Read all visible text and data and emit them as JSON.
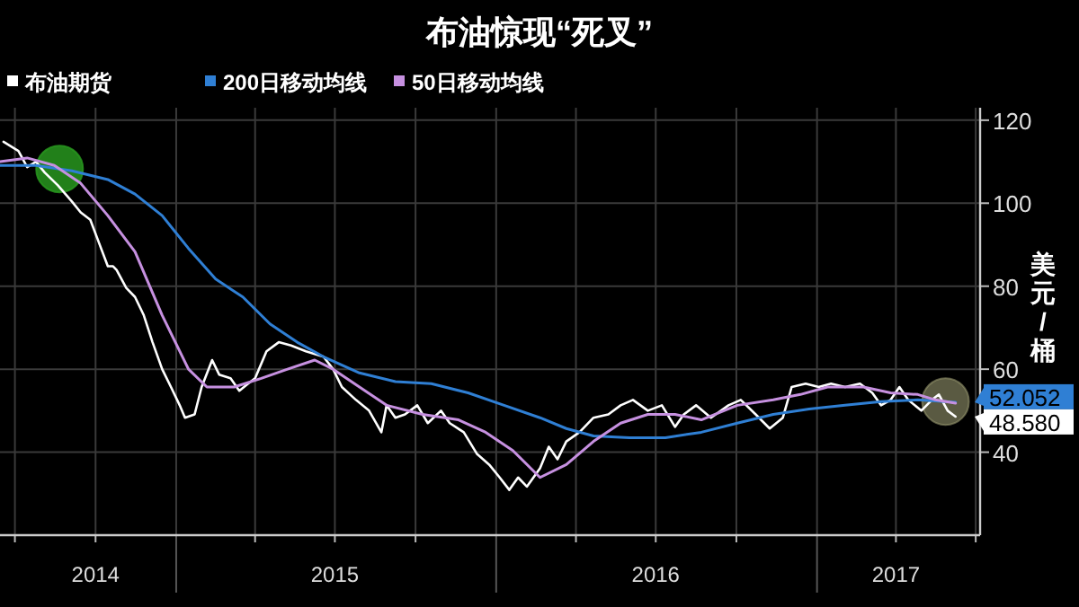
{
  "chart_data": {
    "type": "line",
    "title": "布油惊现“死叉”",
    "ylabel": "美元/桶",
    "legend": "top left",
    "grid": true,
    "xlim": [
      "2014-06-14",
      "2017-07-06"
    ],
    "ylim": [
      20,
      123
    ],
    "yticks": [
      40,
      60,
      80,
      100,
      120
    ],
    "xticks": [
      {
        "value": "2014-07-01",
        "label": null
      },
      {
        "value": "2014-10-01",
        "label": "2014"
      },
      {
        "value": "2015-01-01",
        "label": null
      },
      {
        "value": "2015-04-01",
        "label": null
      },
      {
        "value": "2015-07-01",
        "label": "2015"
      },
      {
        "value": "2015-10-01",
        "label": null
      },
      {
        "value": "2016-01-01",
        "label": null
      },
      {
        "value": "2016-04-01",
        "label": null
      },
      {
        "value": "2016-07-01",
        "label": "2016"
      },
      {
        "value": "2016-10-01",
        "label": null
      },
      {
        "value": "2017-01-01",
        "label": null
      },
      {
        "value": "2017-04-01",
        "label": "2017"
      },
      {
        "value": "2017-07-01",
        "label": null
      }
    ],
    "series": [
      {
        "name": "布油期货",
        "color": "#ffffff",
        "x": [
          "2014-06-18",
          "2014-07-05",
          "2014-07-15",
          "2014-07-25",
          "2014-08-04",
          "2014-08-19",
          "2014-09-04",
          "2014-09-14",
          "2014-09-25",
          "2014-10-05",
          "2014-10-15",
          "2014-10-21",
          "2014-10-25",
          "2014-11-05",
          "2014-11-15",
          "2014-11-25",
          "2014-12-05",
          "2014-12-16",
          "2014-12-26",
          "2015-01-05",
          "2015-01-11",
          "2015-01-22",
          "2015-01-30",
          "2015-02-11",
          "2015-02-19",
          "2015-03-04",
          "2015-03-14",
          "2015-03-24",
          "2015-04-01",
          "2015-04-14",
          "2015-04-28",
          "2015-05-12",
          "2015-05-29",
          "2015-06-18",
          "2015-06-29",
          "2015-07-09",
          "2015-07-25",
          "2015-08-09",
          "2015-08-23",
          "2015-08-29",
          "2015-09-08",
          "2015-09-19",
          "2015-10-03",
          "2015-10-15",
          "2015-10-30",
          "2015-11-09",
          "2015-11-25",
          "2015-12-10",
          "2015-12-24",
          "2016-01-05",
          "2016-01-16",
          "2016-01-26",
          "2016-02-05",
          "2016-02-20",
          "2016-03-01",
          "2016-03-11",
          "2016-03-21",
          "2016-04-05",
          "2016-04-21",
          "2016-05-08",
          "2016-05-22",
          "2016-06-05",
          "2016-06-22",
          "2016-07-08",
          "2016-07-23",
          "2016-08-02",
          "2016-08-16",
          "2016-09-02",
          "2016-09-22",
          "2016-10-06",
          "2016-10-23",
          "2016-11-08",
          "2016-11-23",
          "2016-12-03",
          "2016-12-19",
          "2017-01-03",
          "2017-01-17",
          "2017-02-02",
          "2017-02-19",
          "2017-03-05",
          "2017-03-15",
          "2017-03-26",
          "2017-04-05",
          "2017-04-15",
          "2017-04-30",
          "2017-05-12",
          "2017-05-20",
          "2017-05-30",
          "2017-06-08"
        ],
        "values": [
          114.8,
          112.6,
          108.7,
          110,
          107.4,
          104.3,
          100.4,
          97.8,
          96,
          90.4,
          84.8,
          84.8,
          83.9,
          79.6,
          77.4,
          73,
          66.5,
          60,
          55.7,
          51.3,
          48.3,
          49.1,
          55.7,
          62.2,
          58.7,
          57.8,
          54.8,
          56.5,
          57.8,
          64.3,
          66.5,
          65.7,
          64.3,
          63,
          60,
          55.7,
          52.6,
          50,
          44.8,
          51.3,
          48.3,
          49.1,
          51.3,
          47,
          50,
          47,
          44.8,
          39.6,
          37,
          33.9,
          30.9,
          33.9,
          31.7,
          36.1,
          41.3,
          38.3,
          42.6,
          44.8,
          48.3,
          49.1,
          51.3,
          52.6,
          50,
          51.3,
          46.1,
          49.1,
          51.3,
          48.3,
          51.3,
          52.6,
          49.1,
          45.7,
          48.3,
          55.7,
          56.5,
          55.7,
          56.5,
          55.7,
          56.5,
          54.3,
          51.3,
          52.6,
          55.7,
          52.6,
          50,
          52.6,
          53.9,
          50,
          48.58
        ]
      },
      {
        "name": "200日移动均线",
        "color": "#2f7fd4",
        "x": [
          "2014-06-14",
          "2014-07-25",
          "2014-09-04",
          "2014-10-15",
          "2014-11-15",
          "2014-12-16",
          "2015-01-15",
          "2015-02-15",
          "2015-03-18",
          "2015-04-18",
          "2015-05-19",
          "2015-06-18",
          "2015-07-29",
          "2015-09-08",
          "2015-10-19",
          "2015-11-30",
          "2016-01-10",
          "2016-02-20",
          "2016-03-21",
          "2016-04-21",
          "2016-06-01",
          "2016-07-12",
          "2016-08-22",
          "2016-10-02",
          "2016-11-12",
          "2016-12-23",
          "2017-02-02",
          "2017-03-15",
          "2017-04-26",
          "2017-06-08"
        ],
        "values": [
          109.1,
          109.1,
          107.8,
          105.7,
          102.2,
          97,
          89.1,
          81.7,
          77.4,
          70.9,
          66.5,
          63,
          59.1,
          57,
          56.5,
          54.3,
          51.3,
          48.3,
          45.7,
          43.9,
          43.5,
          43.5,
          44.8,
          47,
          49.1,
          50.4,
          51.3,
          52.2,
          52.6,
          52.052
        ]
      },
      {
        "name": "50日移动均线",
        "color": "#c690e0",
        "x": [
          "2014-06-14",
          "2014-07-15",
          "2014-08-15",
          "2014-09-14",
          "2014-10-15",
          "2014-11-15",
          "2014-12-16",
          "2015-01-15",
          "2015-02-05",
          "2015-03-08",
          "2015-04-08",
          "2015-05-08",
          "2015-06-08",
          "2015-06-29",
          "2015-07-29",
          "2015-08-29",
          "2015-10-09",
          "2015-11-19",
          "2015-12-20",
          "2016-01-20",
          "2016-02-20",
          "2016-03-21",
          "2016-04-21",
          "2016-05-22",
          "2016-06-22",
          "2016-07-23",
          "2016-08-22",
          "2016-10-02",
          "2016-11-12",
          "2016-12-13",
          "2017-01-13",
          "2017-02-23",
          "2017-03-26",
          "2017-04-26",
          "2017-05-16",
          "2017-06-08"
        ],
        "values": [
          110,
          110.9,
          109.1,
          104.8,
          97,
          88.3,
          73,
          60,
          55.7,
          55.7,
          57.8,
          60,
          62.2,
          60,
          55.7,
          51.3,
          49.1,
          47.8,
          44.8,
          40.4,
          33.9,
          37,
          42.6,
          47,
          49.1,
          49.1,
          47.8,
          51.3,
          52.6,
          53.9,
          55.7,
          55.7,
          54.3,
          53.9,
          52.6,
          51.8
        ]
      }
    ],
    "annotations": [
      {
        "text": "52.052",
        "x": "2017-06-08",
        "y": 52.052
      },
      {
        "text": "48.580",
        "x": "2017-06-08",
        "y": 48.58
      }
    ]
  }
}
